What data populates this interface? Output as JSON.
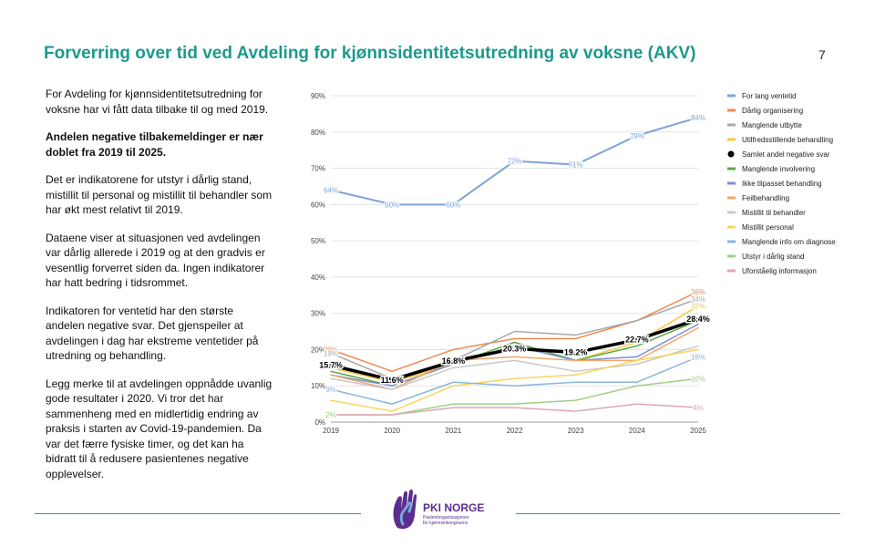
{
  "page": {
    "title": "Forverring over tid ved Avdeling for kjønnsidentitetsutredning av voksne (AKV)",
    "number": "7",
    "paragraphs": [
      {
        "text": "For Avdeling for kjønnsidentitetsutredning for voksne har vi fått data tilbake til og med 2019.",
        "bold": false
      },
      {
        "text": "Andelen negative tilbakemeldinger er nær doblet fra 2019 til 2025.",
        "bold": true
      },
      {
        "text": "Det er indikatorene for utstyr i dårlig stand, mistillit til personal og mistillit til behandler som har økt mest relativt til 2019.",
        "bold": false
      },
      {
        "text": "Dataene viser at situasjonen ved avdelingen var dårlig allerede i 2019 og at den gradvis er vesentlig forverret siden da. Ingen indikatorer har hatt bedring i tidsrommet.",
        "bold": false
      },
      {
        "text": "Indikatoren for ventetid har den største andelen negative svar. Det gjenspeiler at avdelingen i dag har ekstreme ventetider på utredning og behandling.",
        "bold": false
      },
      {
        "text": "Legg merke til at avdelingen oppnådde uvanlig gode resultater i 2020. Vi tror det har sammenheng med en midlertidig endring av praksis i starten av Covid-19-pandemien. Da var det færre fysiske timer, og det kan ha bidratt til å redusere pasientenes negative opplevelser.",
        "bold": false
      }
    ]
  },
  "logo": {
    "name": "PKI NORGE",
    "subtitle_line1": "Pasientorganisasjonen",
    "subtitle_line2": "for kjønnsinkongruens",
    "color_primary": "#5b2d8e",
    "color_accent": "#7aa7d8"
  },
  "chart_data": {
    "type": "line",
    "x": [
      "2019",
      "2020",
      "2021",
      "2022",
      "2023",
      "2024",
      "2025"
    ],
    "ylim": [
      0,
      90
    ],
    "yticks": [
      "0%",
      "10%",
      "20%",
      "30%",
      "40%",
      "50%",
      "60%",
      "70%",
      "80%",
      "90%"
    ],
    "grid": true,
    "legend_position": "right",
    "series": [
      {
        "name": "For lang ventetid",
        "color": "#7fa3d6",
        "width": 2,
        "values": [
          64,
          60,
          60,
          72,
          71,
          79,
          84
        ],
        "labels": [
          "64%",
          "60%",
          "60%",
          "72%",
          "71%",
          "79%",
          "84%"
        ]
      },
      {
        "name": "Dårlig organisering",
        "color": "#ef8a4d",
        "width": 1.5,
        "values": [
          20,
          14,
          20,
          23,
          23,
          28,
          36
        ],
        "labels": [
          "20%",
          "",
          "",
          "",
          "",
          "",
          "36%"
        ]
      },
      {
        "name": "Manglende utbytte",
        "color": "#a9a9a9",
        "width": 1.5,
        "values": [
          19,
          12,
          17,
          25,
          24,
          28,
          34
        ],
        "labels": [
          "19%",
          "",
          "",
          "",
          "",
          "",
          "34%"
        ]
      },
      {
        "name": "Utilfredsstillende behandling",
        "color": "#f5c842",
        "width": 1.5,
        "values": [
          15,
          11,
          16,
          21,
          17,
          22,
          32
        ],
        "labels": [
          "",
          "",
          "",
          "",
          "",
          "",
          "32%"
        ]
      },
      {
        "name": "Samlet andel negative svar",
        "color": "#000000",
        "width": 3.5,
        "values": [
          15.7,
          11.6,
          16.8,
          20.3,
          19.2,
          22.7,
          28.4
        ],
        "labels": [
          "15.7%",
          "11.6%",
          "16.8%",
          "20.3%",
          "19.2%",
          "22.7%",
          "28.4%"
        ]
      },
      {
        "name": "Manglende involvering",
        "color": "#5aa845",
        "width": 1.5,
        "values": [
          14,
          10,
          16,
          22,
          17,
          21,
          28
        ],
        "labels": [
          "",
          "",
          "",
          "",
          "",
          "",
          ""
        ]
      },
      {
        "name": "Ikke tilpasset behandling",
        "color": "#7b8fd1",
        "width": 1.5,
        "values": [
          13,
          10,
          16,
          21,
          17,
          18,
          27
        ],
        "labels": [
          "",
          "",
          "",
          "",
          "",
          "",
          ""
        ]
      },
      {
        "name": "Feilbehandling",
        "color": "#f3a76b",
        "width": 1.5,
        "values": [
          13,
          9,
          17,
          18,
          17,
          17,
          26
        ],
        "labels": [
          "",
          "",
          "",
          "",
          "",
          "",
          ""
        ]
      },
      {
        "name": "Mistillit til behandler",
        "color": "#c8c8c8",
        "width": 1.5,
        "values": [
          12,
          9,
          15,
          17,
          14,
          16,
          21
        ],
        "labels": [
          "",
          "",
          "",
          "",
          "",
          "",
          ""
        ]
      },
      {
        "name": "Mistillit personal",
        "color": "#f9d55c",
        "width": 1.5,
        "values": [
          6,
          3,
          10,
          12,
          13,
          17,
          20
        ],
        "labels": [
          "",
          "",
          "",
          "",
          "",
          "",
          ""
        ]
      },
      {
        "name": "Manglende info om diagnose",
        "color": "#8ab6de",
        "width": 1.5,
        "values": [
          9,
          5,
          11,
          10,
          11,
          11,
          18
        ],
        "labels": [
          "9%",
          "",
          "",
          "",
          "",
          "",
          "18%"
        ]
      },
      {
        "name": "Utstyr i dårlig stand",
        "color": "#9fcf86",
        "width": 1.5,
        "values": [
          2,
          2,
          5,
          5,
          6,
          10,
          12
        ],
        "labels": [
          "2%",
          "",
          "",
          "",
          "",
          "",
          "12%"
        ]
      },
      {
        "name": "Uforståelig informasjon",
        "color": "#e0a6b6",
        "width": 1.5,
        "values": [
          2,
          2,
          4,
          4,
          3,
          5,
          4
        ],
        "labels": [
          "",
          "",
          "",
          "",
          "",
          "",
          "4%"
        ]
      }
    ]
  }
}
